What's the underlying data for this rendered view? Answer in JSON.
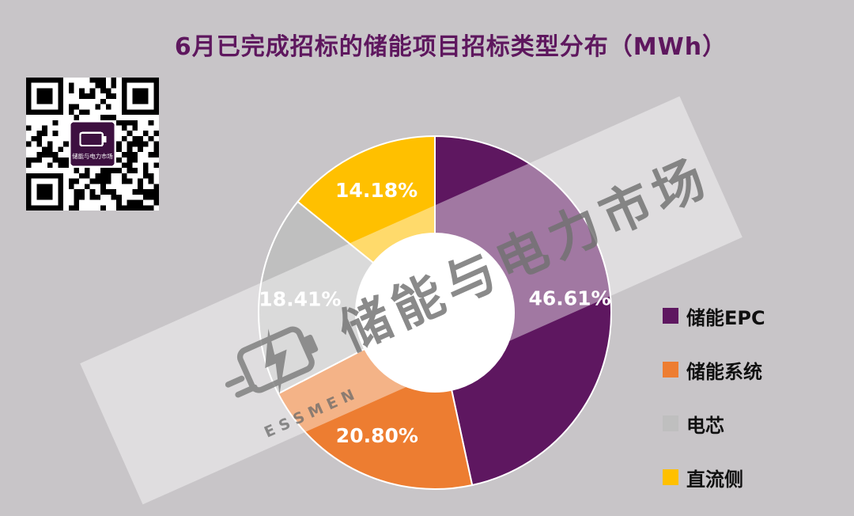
{
  "page": {
    "background": "#c8c5c8"
  },
  "title": {
    "text": "6月已完成招标的储能项目招标类型分布（MWh）",
    "color": "#5e175e"
  },
  "qr": {
    "logo_text": "储能与电力市场"
  },
  "watermark": {
    "brand": "储能与电力市场",
    "subtext": "ESSMEN"
  },
  "chart_data": {
    "type": "pie",
    "subtype": "donut",
    "title": "6月已完成招标的储能项目招标类型分布（MWh）",
    "unit": "MWh",
    "start_angle_deg": 0,
    "direction": "clockwise",
    "legend_position": "right",
    "label_color": "#ffffff",
    "series": [
      {
        "label": "储能EPC",
        "value": 46.61,
        "display": "46.61%",
        "color": "#5e1760"
      },
      {
        "label": "储能系统",
        "value": 20.8,
        "display": "20.80%",
        "color": "#ed7d31"
      },
      {
        "label": "电芯",
        "value": 18.41,
        "display": "18.41%",
        "color": "#bfbfbf"
      },
      {
        "label": "直流侧",
        "value": 14.18,
        "display": "14.18%",
        "color": "#ffc000"
      }
    ]
  }
}
